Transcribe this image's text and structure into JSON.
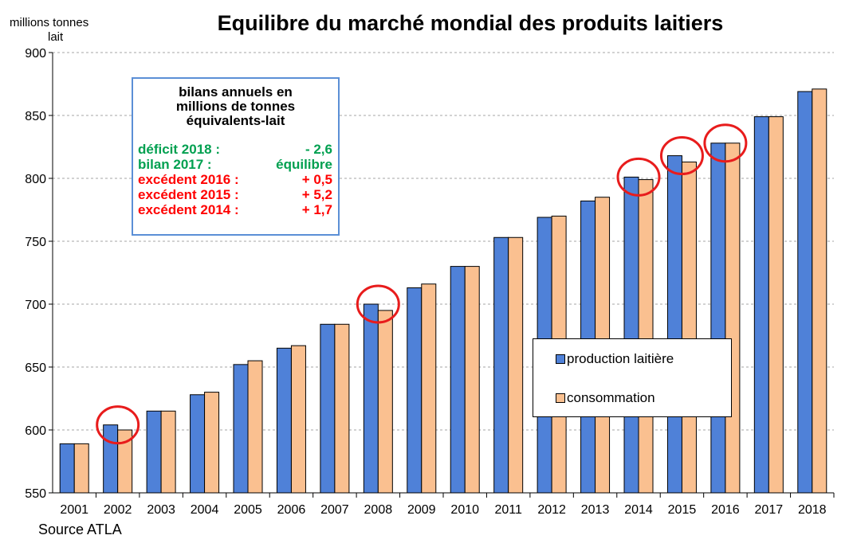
{
  "chart_data": {
    "type": "bar",
    "title": "Equilibre du marché mondial des produits laitiers",
    "ylabel_line1": "millions tonnes",
    "ylabel_line2": "lait",
    "ylim": [
      550,
      900
    ],
    "yticks": [
      550,
      600,
      650,
      700,
      750,
      800,
      850,
      900
    ],
    "grid": true,
    "categories": [
      "2001",
      "2002",
      "2003",
      "2004",
      "2005",
      "2006",
      "2007",
      "2008",
      "2009",
      "2010",
      "2011",
      "2012",
      "2013",
      "2014",
      "2015",
      "2016",
      "2017",
      "2018"
    ],
    "series": [
      {
        "name": "production laitière",
        "color": "#4f81d8",
        "values": [
          589,
          604,
          615,
          628,
          652,
          665,
          684,
          700,
          713,
          730,
          753,
          769,
          782,
          801,
          818,
          828,
          849,
          869
        ]
      },
      {
        "name": "consommation",
        "color": "#fac090",
        "values": [
          589,
          600,
          615,
          630,
          655,
          667,
          684,
          695,
          716,
          730,
          753,
          770,
          785,
          799,
          813,
          828,
          849,
          871
        ]
      }
    ],
    "highlighted_years": [
      "2002",
      "2008",
      "2014",
      "2015",
      "2016"
    ],
    "highlight_color": "#e81c1c",
    "legend_position": "lower-right"
  },
  "info_box": {
    "title_lines": [
      "bilans annuels en",
      "millions de tonnes",
      "équivalents-lait"
    ],
    "balances": [
      {
        "label": "déficit 2018 :",
        "value": "- 2,6",
        "color": "#00a050"
      },
      {
        "label": "bilan 2017 :",
        "value": "équilibre",
        "color": "#00a050"
      },
      {
        "label": "excédent 2016 :",
        "value": "+ 0,5",
        "color": "#ff0000"
      },
      {
        "label": "excédent 2015 :",
        "value": "+ 5,2",
        "color": "#ff0000"
      },
      {
        "label": "excédent 2014 :",
        "value": "+ 1,7",
        "color": "#ff0000"
      }
    ]
  },
  "source": "Source ATLA"
}
